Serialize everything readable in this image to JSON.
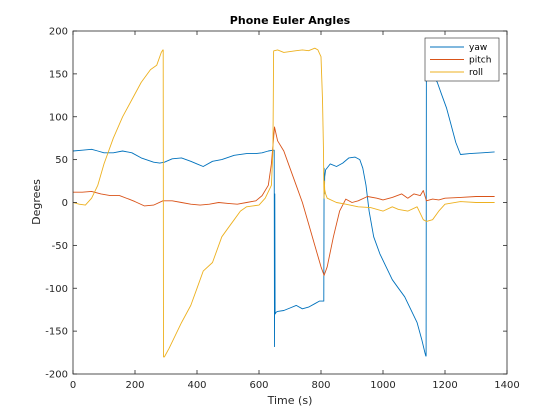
{
  "chart_data": {
    "type": "line",
    "title": "Phone Euler Angles",
    "xlabel": "Time (s)",
    "ylabel": "Degrees",
    "xlim": [
      0,
      1400
    ],
    "ylim": [
      -200,
      200
    ],
    "xticks": [
      0,
      200,
      400,
      600,
      800,
      1000,
      1200,
      1400
    ],
    "yticks": [
      -200,
      -150,
      -100,
      -50,
      0,
      50,
      100,
      150,
      200
    ],
    "grid": false,
    "legend_position": "top-right",
    "series": [
      {
        "name": "yaw",
        "color": "#0072BD",
        "x": [
          0,
          30,
          60,
          80,
          100,
          130,
          160,
          190,
          220,
          260,
          280,
          295,
          320,
          350,
          380,
          400,
          420,
          450,
          480,
          520,
          560,
          590,
          610,
          630,
          645,
          649,
          650,
          651,
          652,
          655,
          660,
          680,
          700,
          720,
          740,
          760,
          780,
          795,
          805,
          809,
          810,
          811,
          812,
          815,
          830,
          850,
          870,
          890,
          910,
          925,
          935,
          945,
          955,
          970,
          990,
          1010,
          1030,
          1050,
          1070,
          1090,
          1110,
          1125,
          1135,
          1138,
          1139,
          1140,
          1141,
          1145,
          1150,
          1160,
          1175,
          1190,
          1205,
          1220,
          1235,
          1250,
          1280,
          1320,
          1360
        ],
        "y": [
          60,
          61,
          62,
          60,
          58,
          58,
          60,
          58,
          52,
          47,
          46,
          47,
          51,
          52,
          48,
          45,
          42,
          48,
          50,
          55,
          57,
          57,
          58,
          60,
          61,
          61,
          -168,
          10,
          -130,
          -128,
          -127,
          -126,
          -123,
          -120,
          -124,
          -122,
          -118,
          -115,
          -115,
          -115,
          40,
          10,
          30,
          38,
          45,
          42,
          46,
          52,
          53,
          50,
          40,
          20,
          -10,
          -40,
          -60,
          -75,
          -90,
          -100,
          -110,
          -125,
          -140,
          -160,
          -175,
          -179,
          -179,
          178,
          175,
          170,
          160,
          150,
          140,
          125,
          110,
          90,
          70,
          56,
          57,
          58,
          59
        ]
      },
      {
        "name": "pitch",
        "color": "#D95319",
        "x": [
          0,
          30,
          60,
          90,
          120,
          150,
          180,
          200,
          230,
          260,
          290,
          320,
          350,
          380,
          410,
          440,
          470,
          500,
          530,
          560,
          590,
          610,
          630,
          640,
          650,
          660,
          680,
          700,
          720,
          740,
          760,
          780,
          800,
          810,
          820,
          840,
          860,
          880,
          900,
          920,
          950,
          980,
          1000,
          1030,
          1060,
          1080,
          1100,
          1120,
          1130,
          1140,
          1160,
          1180,
          1200,
          1250,
          1300,
          1360
        ],
        "y": [
          12,
          12,
          13,
          10,
          8,
          8,
          4,
          1,
          -4,
          -3,
          2,
          2,
          0,
          -2,
          -3,
          -2,
          0,
          -1,
          -2,
          0,
          2,
          8,
          20,
          45,
          88,
          72,
          60,
          40,
          20,
          0,
          -25,
          -50,
          -75,
          -85,
          -75,
          -40,
          -10,
          4,
          0,
          2,
          7,
          5,
          3,
          6,
          10,
          5,
          10,
          8,
          14,
          2,
          4,
          3,
          5,
          6,
          7,
          7
        ]
      },
      {
        "name": "roll",
        "color": "#EDB120",
        "x": [
          0,
          20,
          40,
          60,
          80,
          100,
          130,
          160,
          190,
          220,
          250,
          270,
          285,
          290,
          291,
          292,
          295,
          310,
          330,
          350,
          380,
          400,
          420,
          450,
          480,
          500,
          520,
          540,
          560,
          580,
          600,
          620,
          640,
          645,
          646,
          647,
          648,
          650,
          660,
          680,
          700,
          720,
          740,
          760,
          780,
          790,
          800,
          805,
          808,
          809,
          810,
          811,
          812,
          815,
          820,
          850,
          880,
          920,
          960,
          1000,
          1030,
          1050,
          1080,
          1110,
          1130,
          1140,
          1160,
          1180,
          1200,
          1250,
          1300,
          1360
        ],
        "y": [
          0,
          -2,
          -3,
          5,
          20,
          45,
          75,
          100,
          120,
          140,
          155,
          160,
          175,
          178,
          178,
          -180,
          -180,
          -170,
          -155,
          -140,
          -120,
          -100,
          -80,
          -70,
          -40,
          -30,
          -20,
          -10,
          -5,
          -4,
          -3,
          5,
          20,
          60,
          120,
          176,
          177,
          177,
          178,
          175,
          176,
          177,
          178,
          177,
          180,
          178,
          170,
          120,
          60,
          20,
          5,
          25,
          15,
          10,
          5,
          0,
          -2,
          -5,
          -6,
          -10,
          -5,
          -8,
          -10,
          -5,
          -20,
          -22,
          -20,
          -10,
          -2,
          1,
          0,
          0
        ]
      }
    ]
  }
}
